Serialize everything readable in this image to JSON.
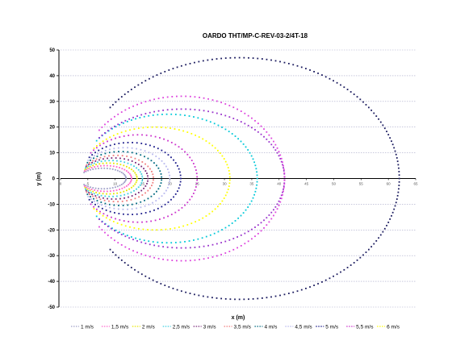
{
  "chart_data": {
    "type": "scatter",
    "title": "OARDO THT/MP-C-REV-03-2/4T-18",
    "xlabel": "x (m)",
    "ylabel": "y (m)",
    "xlim": [
      0,
      65
    ],
    "ylim": [
      -50,
      50
    ],
    "y_ticks": [
      "50",
      "40",
      "30",
      "20",
      "10",
      "0",
      "-10",
      "-20",
      "-30",
      "-40",
      "-50"
    ],
    "x_ticks": [
      "0",
      "5",
      "10",
      "15",
      "20",
      "25",
      "30",
      "35",
      "40",
      "45",
      "50",
      "55",
      "60",
      "65"
    ],
    "grid": "horizontal-dashed",
    "legend_position": "bottom",
    "series": [
      {
        "name": "1 m/s",
        "color": "#a0a0c8",
        "x_min": 3.5,
        "x_max": 12,
        "y_max": 4
      },
      {
        "name": "1,5 m/s",
        "color": "#ff66cc",
        "x_min": 3.5,
        "x_max": 13,
        "y_max": 5
      },
      {
        "name": "2 m/s",
        "color": "#e8e800",
        "x_min": 3.5,
        "x_max": 14,
        "y_max": 6
      },
      {
        "name": "2,5 m/s",
        "color": "#3fd0e0",
        "x_min": 3.5,
        "x_max": 15,
        "y_max": 7
      },
      {
        "name": "3 m/s",
        "color": "#7a2a7a",
        "x_min": 3.5,
        "x_max": 16,
        "y_max": 8
      },
      {
        "name": "3,5 m/s",
        "color": "#f07c7c",
        "x_min": 3.5,
        "x_max": 17,
        "y_max": 9
      },
      {
        "name": "4 m/s",
        "color": "#006a80",
        "x_min": 3.5,
        "x_max": 18.5,
        "y_max": 10.5
      },
      {
        "name": "4,5 m/s",
        "color": "#b8b8ee",
        "x_min": 3.5,
        "x_max": 20,
        "y_max": 12
      },
      {
        "name": "5 m/s",
        "color": "#1a1a8a",
        "x_min": 3.5,
        "x_max": 22,
        "y_max": 14
      },
      {
        "name": "5,5 m/s",
        "color": "#cc33cc",
        "x_min": 3.5,
        "x_max": 25,
        "y_max": 17
      },
      {
        "name": "6 m/s",
        "color": "#ffff00",
        "x_min": 3.5,
        "x_max": 31,
        "y_max": 20
      },
      {
        "name": "",
        "color": "#00c8d8",
        "x_min": 3.5,
        "x_max": 36,
        "y_max": 25
      },
      {
        "name": "",
        "color": "#9933cc",
        "x_min": 3.5,
        "x_max": 41,
        "y_max": 27
      },
      {
        "name": "",
        "color": "#dd44dd",
        "x_min": 3.5,
        "x_max": 41,
        "y_max": 32
      },
      {
        "name": "",
        "color": "#1a1a5e",
        "x_min": 3.5,
        "x_max": 62,
        "y_max": 47
      }
    ]
  }
}
